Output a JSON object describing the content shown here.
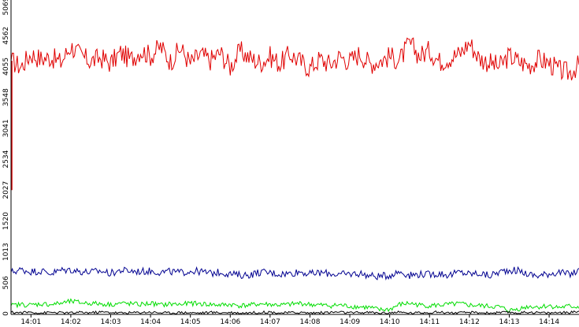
{
  "chart_data": {
    "type": "line",
    "title": "",
    "xlabel": "",
    "ylabel": "",
    "ylim": [
      0,
      5069
    ],
    "xlim": [
      "14:00:30",
      "14:14:45"
    ],
    "y_ticks": [
      {
        "value": 0,
        "label": "0"
      },
      {
        "value": 506,
        "label": "506"
      },
      {
        "value": 1013,
        "label": "1013"
      },
      {
        "value": 1520,
        "label": "1520"
      },
      {
        "value": 2027,
        "label": "2027"
      },
      {
        "value": 2534,
        "label": "2534"
      },
      {
        "value": 3041,
        "label": "3041"
      },
      {
        "value": 3548,
        "label": "3548"
      },
      {
        "value": 4055,
        "label": "4055"
      },
      {
        "value": 4562,
        "label": "4562"
      },
      {
        "value": 5069,
        "label": "5069"
      }
    ],
    "x_ticks": [
      "14:01",
      "14:02",
      "14:03",
      "14:04",
      "14:05",
      "14:06",
      "14:07",
      "14:08",
      "14:09",
      "14:10",
      "14:11",
      "14:12",
      "14:13",
      "14:14"
    ],
    "grid": false,
    "series": [
      {
        "color": "#e00000",
        "x": [
          "14:00:30",
          "14:00:45",
          "14:01:00",
          "14:01:15",
          "14:01:30",
          "14:01:45",
          "14:02:00",
          "14:02:15",
          "14:02:30",
          "14:02:45",
          "14:03:00",
          "14:03:15",
          "14:03:30",
          "14:03:45",
          "14:04:00",
          "14:04:15",
          "14:04:30",
          "14:04:45",
          "14:05:00",
          "14:05:15",
          "14:05:30",
          "14:05:45",
          "14:06:00",
          "14:06:15",
          "14:06:30",
          "14:06:45",
          "14:07:00",
          "14:07:15",
          "14:07:30",
          "14:07:45",
          "14:08:00",
          "14:08:15",
          "14:08:30",
          "14:08:45",
          "14:09:00",
          "14:09:15",
          "14:09:30",
          "14:09:45",
          "14:10:00",
          "14:10:15",
          "14:10:30",
          "14:10:45",
          "14:11:00",
          "14:11:15",
          "14:11:30",
          "14:11:45",
          "14:12:00",
          "14:12:15",
          "14:12:30",
          "14:12:45",
          "14:13:00",
          "14:13:15",
          "14:13:30",
          "14:13:45",
          "14:14:00",
          "14:14:15",
          "14:14:30",
          "14:14:45"
        ],
        "values": [
          4150,
          4050,
          4260,
          4180,
          4210,
          4120,
          4390,
          4230,
          4140,
          4200,
          4110,
          4280,
          4170,
          4320,
          4230,
          4380,
          4140,
          4350,
          4110,
          4250,
          4160,
          4280,
          4050,
          4310,
          4190,
          4120,
          4220,
          4100,
          4260,
          4140,
          4030,
          4180,
          4090,
          4220,
          4140,
          4270,
          4100,
          4150,
          4220,
          4160,
          4430,
          4230,
          4320,
          4140,
          4200,
          4260,
          4450,
          4190,
          4120,
          4050,
          4230,
          4130,
          4080,
          4170,
          4110,
          3990,
          3950,
          4080
        ]
      },
      {
        "color": "#000090",
        "x": [
          "14:00:30",
          "14:00:45",
          "14:01:00",
          "14:01:15",
          "14:01:30",
          "14:01:45",
          "14:02:00",
          "14:02:15",
          "14:02:30",
          "14:02:45",
          "14:03:00",
          "14:03:15",
          "14:03:30",
          "14:03:45",
          "14:04:00",
          "14:04:15",
          "14:04:30",
          "14:04:45",
          "14:05:00",
          "14:05:15",
          "14:05:30",
          "14:05:45",
          "14:06:00",
          "14:06:15",
          "14:06:30",
          "14:06:45",
          "14:07:00",
          "14:07:15",
          "14:07:30",
          "14:07:45",
          "14:08:00",
          "14:08:15",
          "14:08:30",
          "14:08:45",
          "14:09:00",
          "14:09:15",
          "14:09:30",
          "14:09:45",
          "14:10:00",
          "14:10:15",
          "14:10:30",
          "14:10:45",
          "14:11:00",
          "14:11:15",
          "14:11:30",
          "14:11:45",
          "14:12:00",
          "14:12:15",
          "14:12:30",
          "14:12:45",
          "14:13:00",
          "14:13:15",
          "14:13:30",
          "14:13:45",
          "14:14:00",
          "14:14:15",
          "14:14:30",
          "14:14:45"
        ],
        "values": [
          680,
          720,
          690,
          700,
          660,
          710,
          720,
          690,
          680,
          700,
          660,
          710,
          700,
          690,
          700,
          680,
          690,
          670,
          700,
          690,
          660,
          680,
          650,
          630,
          640,
          680,
          670,
          650,
          660,
          690,
          650,
          670,
          660,
          640,
          650,
          660,
          620,
          610,
          630,
          690,
          630,
          650,
          640,
          660,
          630,
          680,
          650,
          660,
          620,
          680,
          720,
          700,
          640,
          620,
          660,
          680,
          640,
          700
        ]
      },
      {
        "color": "#00dd00",
        "x": [
          "14:00:30",
          "14:00:45",
          "14:01:00",
          "14:01:15",
          "14:01:30",
          "14:01:45",
          "14:02:00",
          "14:02:15",
          "14:02:30",
          "14:02:45",
          "14:03:00",
          "14:03:15",
          "14:03:30",
          "14:03:45",
          "14:04:00",
          "14:04:15",
          "14:04:30",
          "14:04:45",
          "14:05:00",
          "14:05:15",
          "14:05:30",
          "14:05:45",
          "14:06:00",
          "14:06:15",
          "14:06:30",
          "14:06:45",
          "14:07:00",
          "14:07:15",
          "14:07:30",
          "14:07:45",
          "14:08:00",
          "14:08:15",
          "14:08:30",
          "14:08:45",
          "14:09:00",
          "14:09:15",
          "14:09:30",
          "14:09:45",
          "14:10:00",
          "14:10:15",
          "14:10:30",
          "14:10:45",
          "14:11:00",
          "14:11:15",
          "14:11:30",
          "14:11:45",
          "14:12:00",
          "14:12:15",
          "14:12:30",
          "14:12:45",
          "14:13:00",
          "14:13:15",
          "14:13:30",
          "14:13:45",
          "14:14:00",
          "14:14:15",
          "14:14:30",
          "14:14:45"
        ],
        "values": [
          130,
          150,
          140,
          160,
          150,
          170,
          200,
          180,
          170,
          160,
          150,
          170,
          160,
          150,
          170,
          140,
          160,
          150,
          170,
          160,
          150,
          140,
          150,
          130,
          140,
          160,
          150,
          140,
          150,
          170,
          150,
          140,
          130,
          140,
          120,
          110,
          100,
          60,
          70,
          150,
          170,
          140,
          130,
          140,
          150,
          160,
          140,
          130,
          120,
          110,
          50,
          80,
          120,
          110,
          130,
          100,
          120,
          110
        ]
      },
      {
        "color": "#000000",
        "x": [
          "14:00:30",
          "14:00:45",
          "14:01:00",
          "14:01:15",
          "14:01:30",
          "14:01:45",
          "14:02:00",
          "14:02:15",
          "14:02:30",
          "14:02:45",
          "14:03:00",
          "14:03:15",
          "14:03:30",
          "14:03:45",
          "14:04:00",
          "14:04:15",
          "14:04:30",
          "14:04:45",
          "14:05:00",
          "14:05:15",
          "14:05:30",
          "14:05:45",
          "14:06:00",
          "14:06:15",
          "14:06:30",
          "14:06:45",
          "14:07:00",
          "14:07:15",
          "14:07:30",
          "14:07:45",
          "14:08:00",
          "14:08:15",
          "14:08:30",
          "14:08:45",
          "14:09:00",
          "14:09:15",
          "14:09:30",
          "14:09:45",
          "14:10:00",
          "14:10:15",
          "14:10:30",
          "14:10:45",
          "14:11:00",
          "14:11:15",
          "14:11:30",
          "14:11:45",
          "14:12:00",
          "14:12:15",
          "14:12:30",
          "14:12:45",
          "14:13:00",
          "14:13:15",
          "14:13:30",
          "14:13:45",
          "14:14:00",
          "14:14:15",
          "14:14:30",
          "14:14:45"
        ],
        "values": [
          20,
          15,
          25,
          10,
          20,
          15,
          10,
          20,
          15,
          25,
          20,
          10,
          15,
          20,
          25,
          15,
          10,
          20,
          15,
          10,
          20,
          15,
          20,
          10,
          15,
          20,
          25,
          10,
          15,
          20,
          10,
          15,
          20,
          25,
          10,
          15,
          20,
          10,
          15,
          20,
          10,
          15,
          20,
          25,
          15,
          10,
          20,
          15,
          10,
          15,
          20,
          10,
          25,
          15,
          10,
          20,
          15,
          40
        ]
      }
    ]
  }
}
